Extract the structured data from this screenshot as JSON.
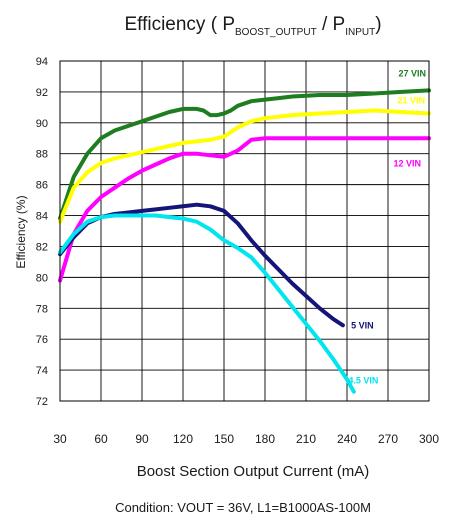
{
  "chart_data": {
    "type": "line",
    "title": {
      "prefix": "Efficiency ( P",
      "sub1": "BOOST_OUTPUT",
      "mid": " / P",
      "sub2": "INPUT",
      "suffix": ")"
    },
    "xlabel": "Boost Section Output Current (mA)",
    "ylabel": "Efficiency (%)",
    "condition": "Condition: VOUT = 36V, L1=B1000AS-100M",
    "xlim": [
      30,
      300
    ],
    "ylim": [
      72,
      94
    ],
    "x_ticks": [
      30,
      60,
      90,
      120,
      150,
      180,
      210,
      240,
      270,
      300
    ],
    "y_ticks": [
      72,
      74,
      76,
      78,
      80,
      82,
      84,
      86,
      88,
      90,
      92,
      94
    ],
    "grid": true,
    "series": [
      {
        "name": "27 VIN",
        "color": "#1e7d1e",
        "points": [
          [
            30,
            83.8
          ],
          [
            40,
            86.5
          ],
          [
            50,
            88
          ],
          [
            60,
            89
          ],
          [
            70,
            89.5
          ],
          [
            80,
            89.8
          ],
          [
            90,
            90.1
          ],
          [
            100,
            90.4
          ],
          [
            110,
            90.7
          ],
          [
            120,
            90.9
          ],
          [
            130,
            90.9
          ],
          [
            135,
            90.8
          ],
          [
            140,
            90.5
          ],
          [
            145,
            90.5
          ],
          [
            150,
            90.6
          ],
          [
            155,
            90.8
          ],
          [
            160,
            91.1
          ],
          [
            170,
            91.4
          ],
          [
            180,
            91.5
          ],
          [
            190,
            91.6
          ],
          [
            200,
            91.7
          ],
          [
            220,
            91.8
          ],
          [
            240,
            91.8
          ],
          [
            260,
            91.9
          ],
          [
            280,
            92
          ],
          [
            300,
            92.1
          ]
        ]
      },
      {
        "name": "21 VIN",
        "color": "#ffff00",
        "points": [
          [
            30,
            83.6
          ],
          [
            40,
            85.8
          ],
          [
            50,
            86.8
          ],
          [
            60,
            87.4
          ],
          [
            70,
            87.7
          ],
          [
            80,
            87.9
          ],
          [
            90,
            88.1
          ],
          [
            100,
            88.3
          ],
          [
            110,
            88.5
          ],
          [
            120,
            88.7
          ],
          [
            130,
            88.8
          ],
          [
            140,
            88.9
          ],
          [
            150,
            89.1
          ],
          [
            160,
            89.7
          ],
          [
            170,
            90.1
          ],
          [
            180,
            90.3
          ],
          [
            200,
            90.5
          ],
          [
            220,
            90.6
          ],
          [
            240,
            90.7
          ],
          [
            260,
            90.8
          ],
          [
            280,
            90.7
          ],
          [
            300,
            90.6
          ]
        ]
      },
      {
        "name": "12 VIN",
        "color": "#ff00ff",
        "points": [
          [
            30,
            79.8
          ],
          [
            40,
            82.8
          ],
          [
            50,
            84.3
          ],
          [
            60,
            85.2
          ],
          [
            70,
            85.8
          ],
          [
            80,
            86.4
          ],
          [
            90,
            86.9
          ],
          [
            100,
            87.3
          ],
          [
            110,
            87.7
          ],
          [
            120,
            88
          ],
          [
            130,
            88
          ],
          [
            140,
            87.9
          ],
          [
            150,
            87.8
          ],
          [
            160,
            88.2
          ],
          [
            170,
            88.9
          ],
          [
            180,
            89
          ],
          [
            200,
            89
          ],
          [
            240,
            89
          ],
          [
            300,
            89
          ]
        ]
      },
      {
        "name": "5 VIN",
        "color": "#14147a",
        "points": [
          [
            30,
            81.5
          ],
          [
            40,
            82.6
          ],
          [
            50,
            83.5
          ],
          [
            60,
            83.9
          ],
          [
            70,
            84.1
          ],
          [
            80,
            84.2
          ],
          [
            90,
            84.3
          ],
          [
            100,
            84.4
          ],
          [
            110,
            84.5
          ],
          [
            120,
            84.6
          ],
          [
            130,
            84.7
          ],
          [
            140,
            84.6
          ],
          [
            150,
            84.3
          ],
          [
            160,
            83.5
          ],
          [
            170,
            82.4
          ],
          [
            180,
            81.4
          ],
          [
            190,
            80.5
          ],
          [
            200,
            79.6
          ],
          [
            210,
            78.8
          ],
          [
            220,
            78
          ],
          [
            230,
            77.3
          ],
          [
            237,
            76.9
          ]
        ]
      },
      {
        "name": "4.5 VIN",
        "color": "#00e5ee",
        "points": [
          [
            30,
            81.6
          ],
          [
            40,
            82.8
          ],
          [
            50,
            83.6
          ],
          [
            60,
            83.9
          ],
          [
            70,
            84
          ],
          [
            80,
            84
          ],
          [
            90,
            84
          ],
          [
            100,
            84
          ],
          [
            110,
            83.9
          ],
          [
            120,
            83.8
          ],
          [
            130,
            83.6
          ],
          [
            140,
            83.1
          ],
          [
            150,
            82.4
          ],
          [
            160,
            81.9
          ],
          [
            170,
            81.3
          ],
          [
            180,
            80.3
          ],
          [
            190,
            79.2
          ],
          [
            200,
            78.1
          ],
          [
            210,
            77
          ],
          [
            220,
            75.9
          ],
          [
            230,
            74.7
          ],
          [
            240,
            73.4
          ],
          [
            245,
            72.6
          ]
        ]
      }
    ]
  }
}
